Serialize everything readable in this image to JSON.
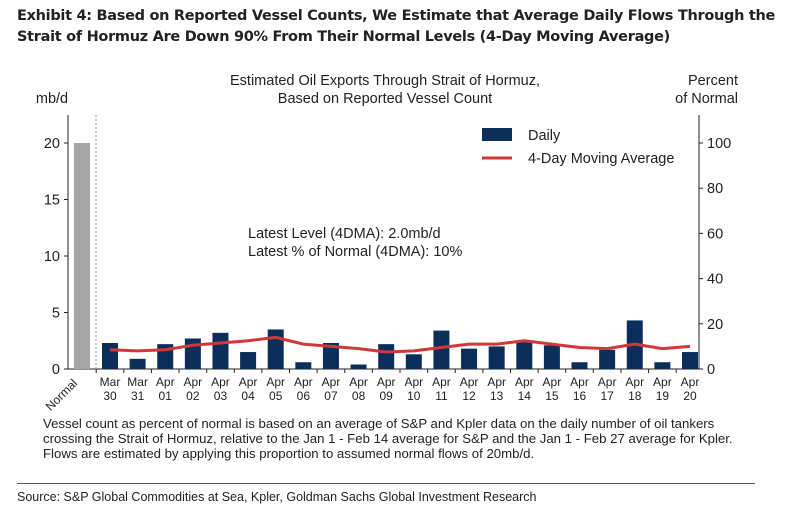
{
  "exhibit_title": "Exhibit 4: Based on Reported Vessel Counts, We Estimate that Average Daily Flows Through the Strait of Hormuz Are Down 90% From Their Normal Levels (4-Day Moving Average)",
  "note": "Vessel count as percent of normal is based on an average of S&P and Kpler data on the daily number of oil tankers crossing the Strait of Hormuz, relative to the Jan 1 - Feb 14 average for S&P and the Jan 1 - Feb 27 average for Kpler. Flows are estimated by applying this proportion to assumed normal flows of 20mb/d.",
  "source": "Source: S&P Global Commodities at Sea, Kpler, Goldman Sachs Global Investment Research",
  "chart_data": {
    "type": "bar",
    "title": [
      "Estimated Oil Exports Through Strait of Hormuz,",
      "Based on Reported Vessel Count"
    ],
    "ylabel_left": "mb/d",
    "ylabel_right": [
      "Percent",
      "of Normal"
    ],
    "ylim_left": [
      0,
      20
    ],
    "yticks_left": [
      0,
      5,
      10,
      15,
      20
    ],
    "ylim_right": [
      0,
      100
    ],
    "yticks_right": [
      0,
      20,
      40,
      60,
      80,
      100
    ],
    "grid": false,
    "legend_placement": "top-right",
    "annotations": [
      "Latest Level (4DMA): 2.0mb/d",
      "Latest % of Normal (4DMA): 10%"
    ],
    "normal": {
      "label": "Normal",
      "value": 20,
      "color": "#a6a6a6"
    },
    "categories": [
      [
        "Mar",
        "30"
      ],
      [
        "Mar",
        "31"
      ],
      [
        "Apr",
        "01"
      ],
      [
        "Apr",
        "02"
      ],
      [
        "Apr",
        "03"
      ],
      [
        "Apr",
        "04"
      ],
      [
        "Apr",
        "05"
      ],
      [
        "Apr",
        "06"
      ],
      [
        "Apr",
        "07"
      ],
      [
        "Apr",
        "08"
      ],
      [
        "Apr",
        "09"
      ],
      [
        "Apr",
        "10"
      ],
      [
        "Apr",
        "11"
      ],
      [
        "Apr",
        "12"
      ],
      [
        "Apr",
        "13"
      ],
      [
        "Apr",
        "14"
      ],
      [
        "Apr",
        "15"
      ],
      [
        "Apr",
        "16"
      ],
      [
        "Apr",
        "17"
      ],
      [
        "Apr",
        "18"
      ],
      [
        "Apr",
        "19"
      ],
      [
        "Apr",
        "20"
      ]
    ],
    "series": [
      {
        "name": "Daily",
        "axis": "left",
        "type": "bar",
        "color": "#0b2f5a",
        "values": [
          2.3,
          0.9,
          2.2,
          2.7,
          3.2,
          1.5,
          3.5,
          0.6,
          2.3,
          0.4,
          2.2,
          1.3,
          3.4,
          1.8,
          2.0,
          2.4,
          2.1,
          0.6,
          1.7,
          4.3,
          0.6,
          1.5
        ]
      },
      {
        "name": "4-Day Moving Average",
        "axis": "right",
        "type": "line",
        "color": "#d0393b",
        "values": [
          8.5,
          8,
          8.5,
          10.5,
          11.5,
          12.5,
          14,
          11,
          10,
          9,
          7.5,
          8,
          9.5,
          11,
          11,
          12.5,
          11,
          9.5,
          9,
          11,
          9,
          10
        ]
      }
    ]
  }
}
